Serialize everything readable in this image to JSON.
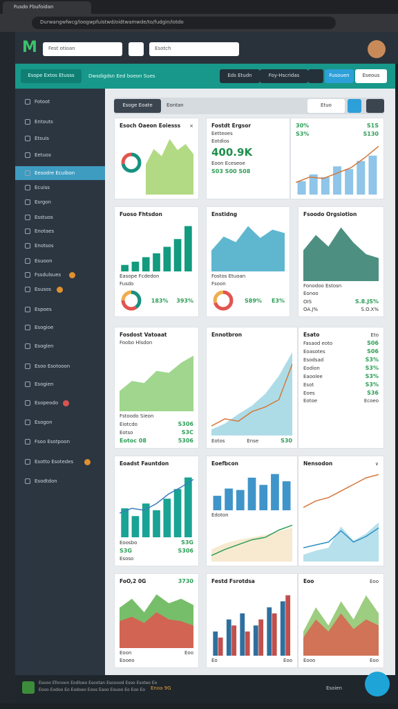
{
  "browser": {
    "tab_title": "Fusdo Fbufoidan",
    "url": "Durwangwfwcg/loogwpfuistwd/oidtwamwde/to/fudgin/lotdo"
  },
  "header": {
    "logo": "M",
    "search": "Fest otioan",
    "search_alt": "Esotch"
  },
  "toolbar": {
    "tab": "Esope Extos Etusss",
    "breadcrumb": "Dwsdigdsn Eed boeon Sues",
    "buttons": [
      "Eds Etudn",
      "Foy-Hscridas",
      "Fusouen",
      "Eseous"
    ]
  },
  "sidebar": [
    "Fotoot",
    "Entouts",
    "Etsuis",
    "Eetuos",
    "Eesodre Ecuibon",
    "Ecuiss",
    "Esrgon",
    "Esstuos",
    "Enotaes",
    "Enotsos",
    "Esuoon",
    "Fssdulsues",
    "Esusos",
    "Espoes",
    "Esogioe",
    "Esoglen",
    "Esoo Esotooon",
    "Esogien",
    "Esopeodo",
    "Esogon",
    "Fsoo Esotpoon",
    "Esotto Esotedes",
    "Esodtdon"
  ],
  "filters": {
    "title": "Esoge Eoate",
    "tab": "Eontan",
    "select": "Etuo"
  },
  "cards": [
    {
      "rows": [
        [
          "Esoch Oaeon Eoiesss",
          "×"
        ],
        [
          {
            "type": "donut",
            "values": [
              72,
              28
            ],
            "colors": [
              "#17917f",
              "#e2554f"
            ]
          },
          {
            "type": "area",
            "values": [
              30,
              45,
              38,
              55,
              44,
              50,
              40
            ],
            "color": "#a5d36e"
          }
        ]
      ]
    },
    {
      "rows": [
        [
          "Fostdt Ergsor"
        ],
        [
          "Eetteoes"
        ],
        [
          "Eotdios"
        ],
        [
          "400.9K"
        ],
        [
          "Eoon Eceseoe"
        ],
        [
          "S03 S00 S08"
        ]
      ]
    },
    {
      "rows": [
        [
          "30%",
          "S1S"
        ],
        [
          "S3%",
          "S130"
        ],
        [
          {
            "type": "barline",
            "values": [
              20,
              30,
              26,
              42,
              38,
              50,
              58
            ],
            "line": [
              18,
              26,
              24,
              32,
              40,
              55,
              72
            ],
            "color": "#8ec5e8",
            "line_color": "#d4773a"
          }
        ]
      ]
    },
    {
      "rows": [
        [
          "Fuoso Fhtsdon"
        ],
        [
          {
            "type": "bar",
            "values": [
              10,
              15,
              22,
              28,
              38,
              50,
              70
            ],
            "color": "#129b7e"
          }
        ],
        [
          "Easope Fcdedon"
        ],
        [
          "Fusdo"
        ],
        [
          {
            "type": "donut",
            "values": [
              40,
              35,
              25
            ],
            "colors": [
              "#17917f",
              "#e2554f",
              "#f0ad4e"
            ]
          },
          "183%",
          "393%"
        ]
      ]
    },
    {
      "rows": [
        [
          "Enstidng"
        ],
        [
          {
            "type": "area",
            "values": [
              30,
              50,
              42,
              65,
              48,
              60,
              55
            ],
            "color": "#43aac7"
          }
        ],
        [
          "Fostos Etuoan"
        ],
        [
          "Fsoon"
        ],
        [
          {
            "type": "donut",
            "values": [
              70,
              30
            ],
            "colors": [
              "#e2554f",
              "#f0ad4e"
            ]
          },
          "S89%",
          "E3%"
        ]
      ]
    },
    {
      "rows": [
        [
          "Fsoodo Orgsiotion"
        ],
        [
          {
            "type": "area",
            "values": [
              40,
              60,
              45,
              70,
              50,
              35,
              30
            ],
            "color": "#2e7d6b"
          }
        ],
        [
          "Fonodoo Estosn"
        ],
        [
          "Eonoo"
        ],
        [
          "OIS",
          "S.8.JS%"
        ],
        [
          "OA.J%",
          "S.O.X%"
        ]
      ]
    },
    {
      "rows": [
        [
          "Fosdost Vatoaat"
        ],
        [
          "Foobo Hlsdon"
        ],
        [
          {
            "type": "area",
            "values": [
              20,
              30,
              28,
              40,
              38,
              48,
              55
            ],
            "color": "#8fcf7a"
          }
        ],
        [
          "Fstoodo Sieon"
        ],
        [
          "Eiotcdo",
          "S306"
        ],
        [
          "Eotso",
          "S3C"
        ],
        [
          "Eotoc 08",
          "5306"
        ]
      ]
    },
    {
      "rows": [
        [
          "Ennotbron"
        ],
        [
          {
            "type": "arealine",
            "values": [
              5,
              10,
              18,
              25,
              35,
              50,
              70
            ],
            "line": [
              8,
              14,
              12,
              20,
              24,
              30,
              60
            ],
            "color": "#9fd6e3",
            "line_color": "#d4773a"
          }
        ],
        [
          "Eotos",
          "Ense",
          "S30"
        ]
      ]
    },
    {
      "rows": [
        [
          "Esato",
          "Eto"
        ],
        [
          "Fasaod eoto",
          "S06"
        ],
        [
          "Eoasotes",
          "S06"
        ],
        [
          "Esodsad",
          "S3%"
        ],
        [
          "Eodion",
          "S3%"
        ],
        [
          "Eaoolee",
          "S3%"
        ],
        [
          "Esot",
          "S3%"
        ],
        [
          "Eoes",
          "S36"
        ],
        [
          "Eotoe",
          "Ecoeo"
        ]
      ]
    },
    {
      "rows": [
        [
          "Eoadst Fauntdon"
        ],
        [
          {
            "type": "barline",
            "values": [
              30,
              22,
              35,
              28,
              40,
              50,
              62
            ],
            "line": [
              25,
              30,
              28,
              35,
              45,
              52,
              60
            ],
            "color": "#19a394",
            "line_color": "#3a7bbf"
          }
        ],
        [
          "Eoosbo",
          "S3G"
        ],
        [
          "S3G",
          "S306"
        ],
        [
          "Esoso"
        ]
      ]
    },
    {
      "rows": [
        [
          "Eoefbcon"
        ],
        [
          {
            "type": "bar",
            "values": [
              20,
              30,
              28,
              45,
              35,
              50,
              40
            ],
            "color": "#3f95c9"
          }
        ],
        [
          "Edoton"
        ],
        [
          {
            "type": "arealine",
            "values": [
              10,
              15,
              18,
              20,
              22,
              25,
              28
            ],
            "line": [
              5,
              10,
              14,
              18,
              20,
              26,
              30
            ],
            "color": "#f6e6c8",
            "line_color": "#2e9d57"
          }
        ]
      ]
    },
    {
      "rows": [
        [
          "Nensodon",
          "∨"
        ],
        [
          {
            "type": "arealine",
            "values": [
              0,
              0,
              0,
              0,
              0,
              0,
              0
            ],
            "line": [
              10,
              20,
              25,
              35,
              45,
              55,
              60
            ],
            "color": "#ffffff",
            "line_color": "#d4773a"
          }
        ],
        [
          {
            "type": "arealine",
            "values": [
              5,
              8,
              10,
              25,
              15,
              20,
              28
            ],
            "line": [
              10,
              12,
              14,
              22,
              14,
              18,
              24
            ],
            "color": "#a9dbe8",
            "line_color": "#2b8fc2"
          }
        ]
      ]
    },
    {
      "rows": [
        [
          "FoO,2 0G",
          "3730"
        ],
        [
          {
            "type": "areas",
            "values": [
              45,
              55,
              40,
              60,
              50,
              55,
              48
            ],
            "values2": [
              30,
              35,
              28,
              40,
              32,
              30,
              25
            ],
            "color": "#5fb350",
            "color2": "#e2554f"
          }
        ],
        [
          "Eoon",
          "Eoo"
        ],
        [
          "Eooeo"
        ]
      ]
    },
    {
      "rows": [
        [
          "Festd Fsrotdsa"
        ],
        [
          {
            "type": "bars2",
            "values": [
              20,
              30,
              35,
              25,
              40,
              45
            ],
            "values2": [
              15,
              25,
              20,
              30,
              35,
              50
            ],
            "color": "#2e6f9e",
            "color2": "#c0504d"
          }
        ],
        [
          "Eo",
          "Eoo"
        ]
      ]
    },
    {
      "rows": [
        [
          "Eoo",
          "Eoo"
        ],
        [
          {
            "type": "areas",
            "values": [
              20,
              40,
              25,
              45,
              30,
              50,
              35
            ],
            "values2": [
              15,
              30,
              20,
              35,
              22,
              30,
              25
            ],
            "color": "#8cc46a",
            "color2": "#d9634f"
          }
        ],
        [
          "Eooo",
          "Eoo"
        ]
      ]
    }
  ],
  "footer": {
    "text": "Esooo Efonoon Eodloeo Esootan Esooood Esoo Esoteo Eo",
    "text2": "Eooo Eodoo Eo Eodoeo Eoos Eaoo Eouoo Eo Eoo Eo",
    "tag": "Enoa 9G",
    "link": "Esoien"
  }
}
